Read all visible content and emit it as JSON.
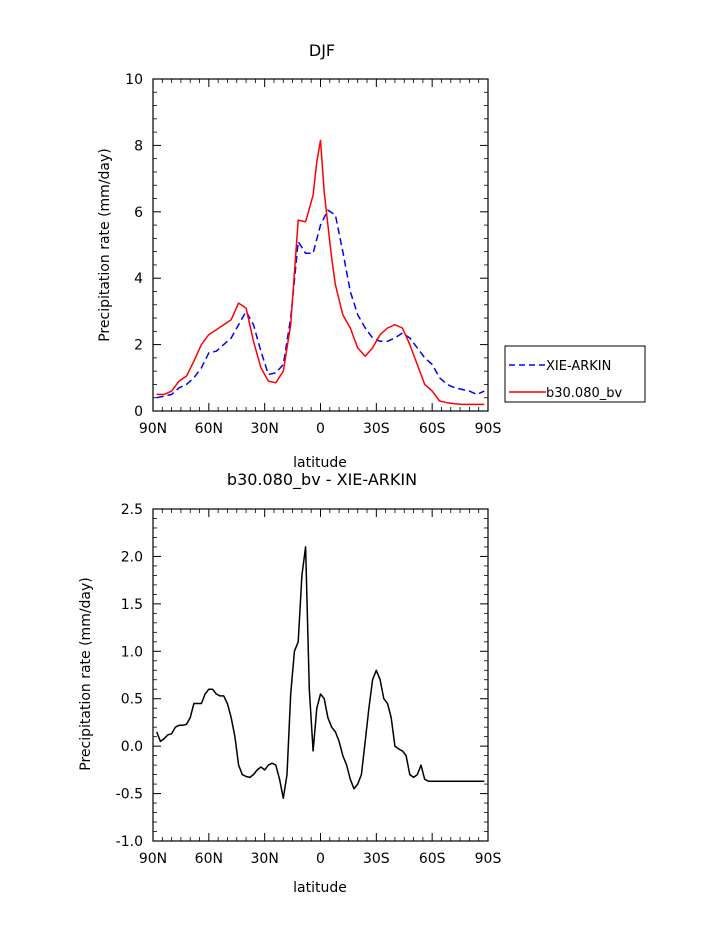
{
  "chart_data": [
    {
      "type": "line",
      "title": "DJF",
      "xlabel": "latitude",
      "ylabel": "Precipitation rate (mm/day)",
      "ylim": [
        0,
        10
      ],
      "xlim": [
        90,
        -90
      ],
      "xtick_values": [
        90,
        60,
        30,
        0,
        -30,
        -60,
        -90
      ],
      "xtick_labels": [
        "90N",
        "60N",
        "30N",
        "0",
        "30S",
        "60S",
        "90S"
      ],
      "ytick_values": [
        0,
        2,
        4,
        6,
        8,
        10
      ],
      "ytick_labels": [
        "0",
        "2",
        "4",
        "6",
        "8",
        "10"
      ],
      "legend_position": "outside-right",
      "series": [
        {
          "name": "XIE-ARKIN",
          "color": "#0000ff",
          "dash": "dashed",
          "x": [
            88,
            84,
            80,
            76,
            72,
            68,
            64,
            60,
            56,
            52,
            48,
            44,
            40,
            36,
            32,
            28,
            24,
            20,
            16,
            12,
            8,
            4,
            0,
            -4,
            -8,
            -12,
            -16,
            -20,
            -24,
            -28,
            -32,
            -36,
            -40,
            -44,
            -48,
            -52,
            -56,
            -60,
            -64,
            -68,
            -72,
            -76,
            -80,
            -84,
            -88
          ],
          "values": [
            0.4,
            0.45,
            0.5,
            0.7,
            0.8,
            1.0,
            1.3,
            1.75,
            1.8,
            2.0,
            2.2,
            2.6,
            3.0,
            2.6,
            1.8,
            1.1,
            1.15,
            1.4,
            2.8,
            5.1,
            4.75,
            4.75,
            5.6,
            6.05,
            5.9,
            4.8,
            3.6,
            2.9,
            2.5,
            2.2,
            2.1,
            2.1,
            2.2,
            2.35,
            2.2,
            1.9,
            1.6,
            1.4,
            1.0,
            0.8,
            0.7,
            0.65,
            0.6,
            0.5,
            0.6
          ]
        },
        {
          "name": "b30.080_bv",
          "color": "#ff0000",
          "dash": "solid",
          "x": [
            88,
            84,
            80,
            76,
            72,
            68,
            64,
            60,
            56,
            52,
            48,
            44,
            40,
            36,
            32,
            28,
            24,
            20,
            16,
            12,
            8,
            4,
            2,
            0,
            -2,
            -4,
            -6,
            -8,
            -12,
            -16,
            -20,
            -24,
            -28,
            -32,
            -36,
            -40,
            -44,
            -48,
            -52,
            -56,
            -60,
            -64,
            -68,
            -72,
            -76,
            -80,
            -84,
            -88
          ],
          "values": [
            0.5,
            0.5,
            0.6,
            0.9,
            1.05,
            1.5,
            2.0,
            2.3,
            2.45,
            2.6,
            2.75,
            3.25,
            3.1,
            2.1,
            1.3,
            0.9,
            0.85,
            1.2,
            2.6,
            5.75,
            5.7,
            6.5,
            7.5,
            8.15,
            6.6,
            5.6,
            4.6,
            3.8,
            2.9,
            2.5,
            1.9,
            1.65,
            1.9,
            2.3,
            2.5,
            2.6,
            2.5,
            2.0,
            1.4,
            0.8,
            0.6,
            0.3,
            0.25,
            0.22,
            0.2,
            0.2,
            0.2,
            0.2
          ]
        }
      ]
    },
    {
      "type": "line",
      "title": "b30.080_bv - XIE-ARKIN",
      "xlabel": "latitude",
      "ylabel": "Precipitation rate (mm/day)",
      "ylim": [
        -1.0,
        2.5
      ],
      "xlim": [
        90,
        -90
      ],
      "xtick_values": [
        90,
        60,
        30,
        0,
        -30,
        -60,
        -90
      ],
      "xtick_labels": [
        "90N",
        "60N",
        "30N",
        "0",
        "30S",
        "60S",
        "90S"
      ],
      "ytick_values": [
        -1.0,
        -0.5,
        0.0,
        0.5,
        1.0,
        1.5,
        2.0,
        2.5
      ],
      "ytick_labels": [
        "-1.0",
        "-0.5",
        "0.0",
        "0.5",
        "1.0",
        "1.5",
        "2.0",
        "2.5"
      ],
      "series": [
        {
          "color": "#000000",
          "dash": "solid",
          "x": [
            88,
            86,
            84,
            82,
            80,
            78,
            76,
            74,
            72,
            70,
            68,
            66,
            64,
            62,
            60,
            58,
            56,
            54,
            52,
            50,
            48,
            46,
            44,
            42,
            40,
            38,
            36,
            34,
            32,
            30,
            28,
            26,
            24,
            22,
            20,
            18,
            16,
            14,
            12,
            10,
            8,
            6,
            4,
            2,
            0,
            -2,
            -4,
            -6,
            -8,
            -10,
            -12,
            -14,
            -16,
            -18,
            -20,
            -22,
            -24,
            -26,
            -28,
            -30,
            -32,
            -34,
            -36,
            -38,
            -40,
            -42,
            -44,
            -46,
            -48,
            -50,
            -52,
            -54,
            -56,
            -58,
            -60,
            -62,
            -64,
            -66,
            -68,
            -70,
            -72,
            -74,
            -76,
            -78,
            -80,
            -82,
            -84,
            -86,
            -88
          ],
          "values": [
            0.15,
            0.05,
            0.08,
            0.12,
            0.13,
            0.2,
            0.22,
            0.22,
            0.23,
            0.3,
            0.45,
            0.45,
            0.45,
            0.55,
            0.6,
            0.6,
            0.55,
            0.53,
            0.53,
            0.45,
            0.3,
            0.1,
            -0.2,
            -0.3,
            -0.32,
            -0.33,
            -0.3,
            -0.25,
            -0.22,
            -0.25,
            -0.2,
            -0.18,
            -0.2,
            -0.35,
            -0.55,
            -0.3,
            0.55,
            1.0,
            1.1,
            1.8,
            2.1,
            0.6,
            -0.05,
            0.4,
            0.55,
            0.5,
            0.3,
            0.2,
            0.15,
            0.05,
            -0.1,
            -0.2,
            -0.35,
            -0.45,
            -0.4,
            -0.3,
            0.05,
            0.4,
            0.7,
            0.8,
            0.7,
            0.5,
            0.45,
            0.3,
            0.0,
            -0.03,
            -0.05,
            -0.1,
            -0.3,
            -0.33,
            -0.3,
            -0.2,
            -0.35,
            -0.37,
            -0.37,
            -0.37,
            -0.37,
            -0.37,
            -0.37,
            -0.37,
            -0.37,
            -0.37,
            -0.37,
            -0.37,
            -0.37,
            -0.37,
            -0.37,
            -0.37,
            -0.37
          ]
        }
      ]
    }
  ]
}
